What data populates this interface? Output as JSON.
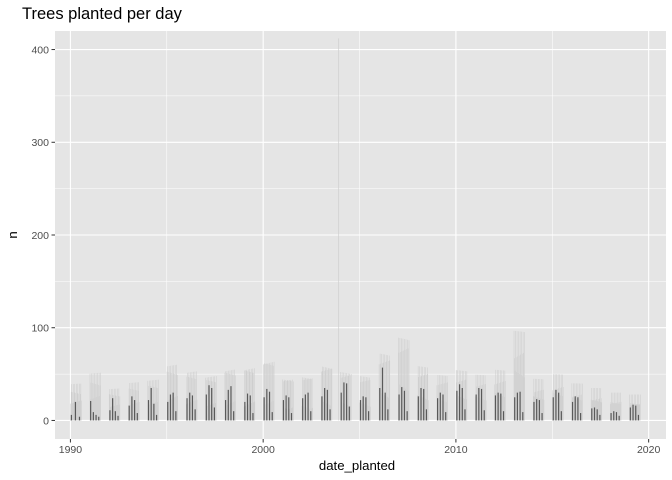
{
  "chart_data": {
    "type": "bar",
    "title": "Trees planted per day",
    "xlabel": "date_planted",
    "ylabel": "n",
    "x_ticks": [
      1990,
      2000,
      2010,
      2020
    ],
    "y_ticks": [
      0,
      100,
      200,
      300,
      400
    ],
    "xlim": [
      1989.2,
      2020.9
    ],
    "ylim": [
      -20,
      420
    ],
    "grid": true,
    "background": "#e5e5e5",
    "grid_color": "#ffffff",
    "bar_color": "#595959",
    "faint_color": "#cfcfcf",
    "peak": {
      "x": 2003.9,
      "y": 412
    },
    "seasons": [
      {
        "year": 1990,
        "values": [
          6,
          20,
          4
        ],
        "faint_max": 40
      },
      {
        "year": 1991,
        "values": [
          21,
          9,
          6,
          4
        ],
        "faint_max": 52
      },
      {
        "year": 1992,
        "values": [
          11,
          24,
          10,
          5
        ],
        "faint_max": 35
      },
      {
        "year": 1993,
        "values": [
          16,
          26,
          22,
          8
        ],
        "faint_max": 42
      },
      {
        "year": 1994,
        "values": [
          22,
          35,
          18,
          6
        ],
        "faint_max": 45
      },
      {
        "year": 1995,
        "values": [
          20,
          28,
          30,
          10
        ],
        "faint_max": 62
      },
      {
        "year": 1996,
        "values": [
          24,
          30,
          27,
          12
        ],
        "faint_max": 55
      },
      {
        "year": 1997,
        "values": [
          28,
          38,
          35,
          14
        ],
        "faint_max": 50
      },
      {
        "year": 1998,
        "values": [
          22,
          33,
          37,
          10
        ],
        "faint_max": 58
      },
      {
        "year": 1999,
        "values": [
          20,
          29,
          27,
          8
        ],
        "faint_max": 60
      },
      {
        "year": 2000,
        "values": [
          25,
          34,
          31,
          9
        ],
        "faint_max": 68
      },
      {
        "year": 2001,
        "values": [
          22,
          27,
          25,
          8
        ],
        "faint_max": 48
      },
      {
        "year": 2002,
        "values": [
          24,
          28,
          30,
          10
        ],
        "faint_max": 50
      },
      {
        "year": 2003,
        "values": [
          26,
          35,
          33,
          12
        ],
        "faint_max": 62
      },
      {
        "year": 2004,
        "values": [
          30,
          41,
          40,
          15
        ],
        "faint_max": 55
      },
      {
        "year": 2005,
        "values": [
          22,
          26,
          25,
          10
        ],
        "faint_max": 50
      },
      {
        "year": 2006,
        "values": [
          35,
          57,
          30,
          12
        ],
        "faint_max": 75
      },
      {
        "year": 2007,
        "values": [
          28,
          36,
          32,
          10
        ],
        "faint_max": 92
      },
      {
        "year": 2008,
        "values": [
          26,
          35,
          34,
          12
        ],
        "faint_max": 60
      },
      {
        "year": 2009,
        "values": [
          24,
          30,
          28,
          9
        ],
        "faint_max": 50
      },
      {
        "year": 2010,
        "values": [
          32,
          39,
          35,
          12
        ],
        "faint_max": 55
      },
      {
        "year": 2011,
        "values": [
          28,
          35,
          34,
          11
        ],
        "faint_max": 50
      },
      {
        "year": 2012,
        "values": [
          27,
          30,
          29,
          10
        ],
        "faint_max": 55
      },
      {
        "year": 2013,
        "values": [
          25,
          30,
          31,
          9
        ],
        "faint_max": 97
      },
      {
        "year": 2014,
        "values": [
          20,
          23,
          22,
          8
        ],
        "faint_max": 45
      },
      {
        "year": 2015,
        "values": [
          25,
          33,
          30,
          10
        ],
        "faint_max": 50
      },
      {
        "year": 2016,
        "values": [
          20,
          26,
          25,
          8
        ],
        "faint_max": 40
      },
      {
        "year": 2017,
        "values": [
          13,
          14,
          12,
          6
        ],
        "faint_max": 35
      },
      {
        "year": 2018,
        "values": [
          8,
          10,
          9,
          5
        ],
        "faint_max": 30
      },
      {
        "year": 2019,
        "values": [
          14,
          17,
          16,
          6
        ],
        "faint_max": 28
      }
    ]
  }
}
